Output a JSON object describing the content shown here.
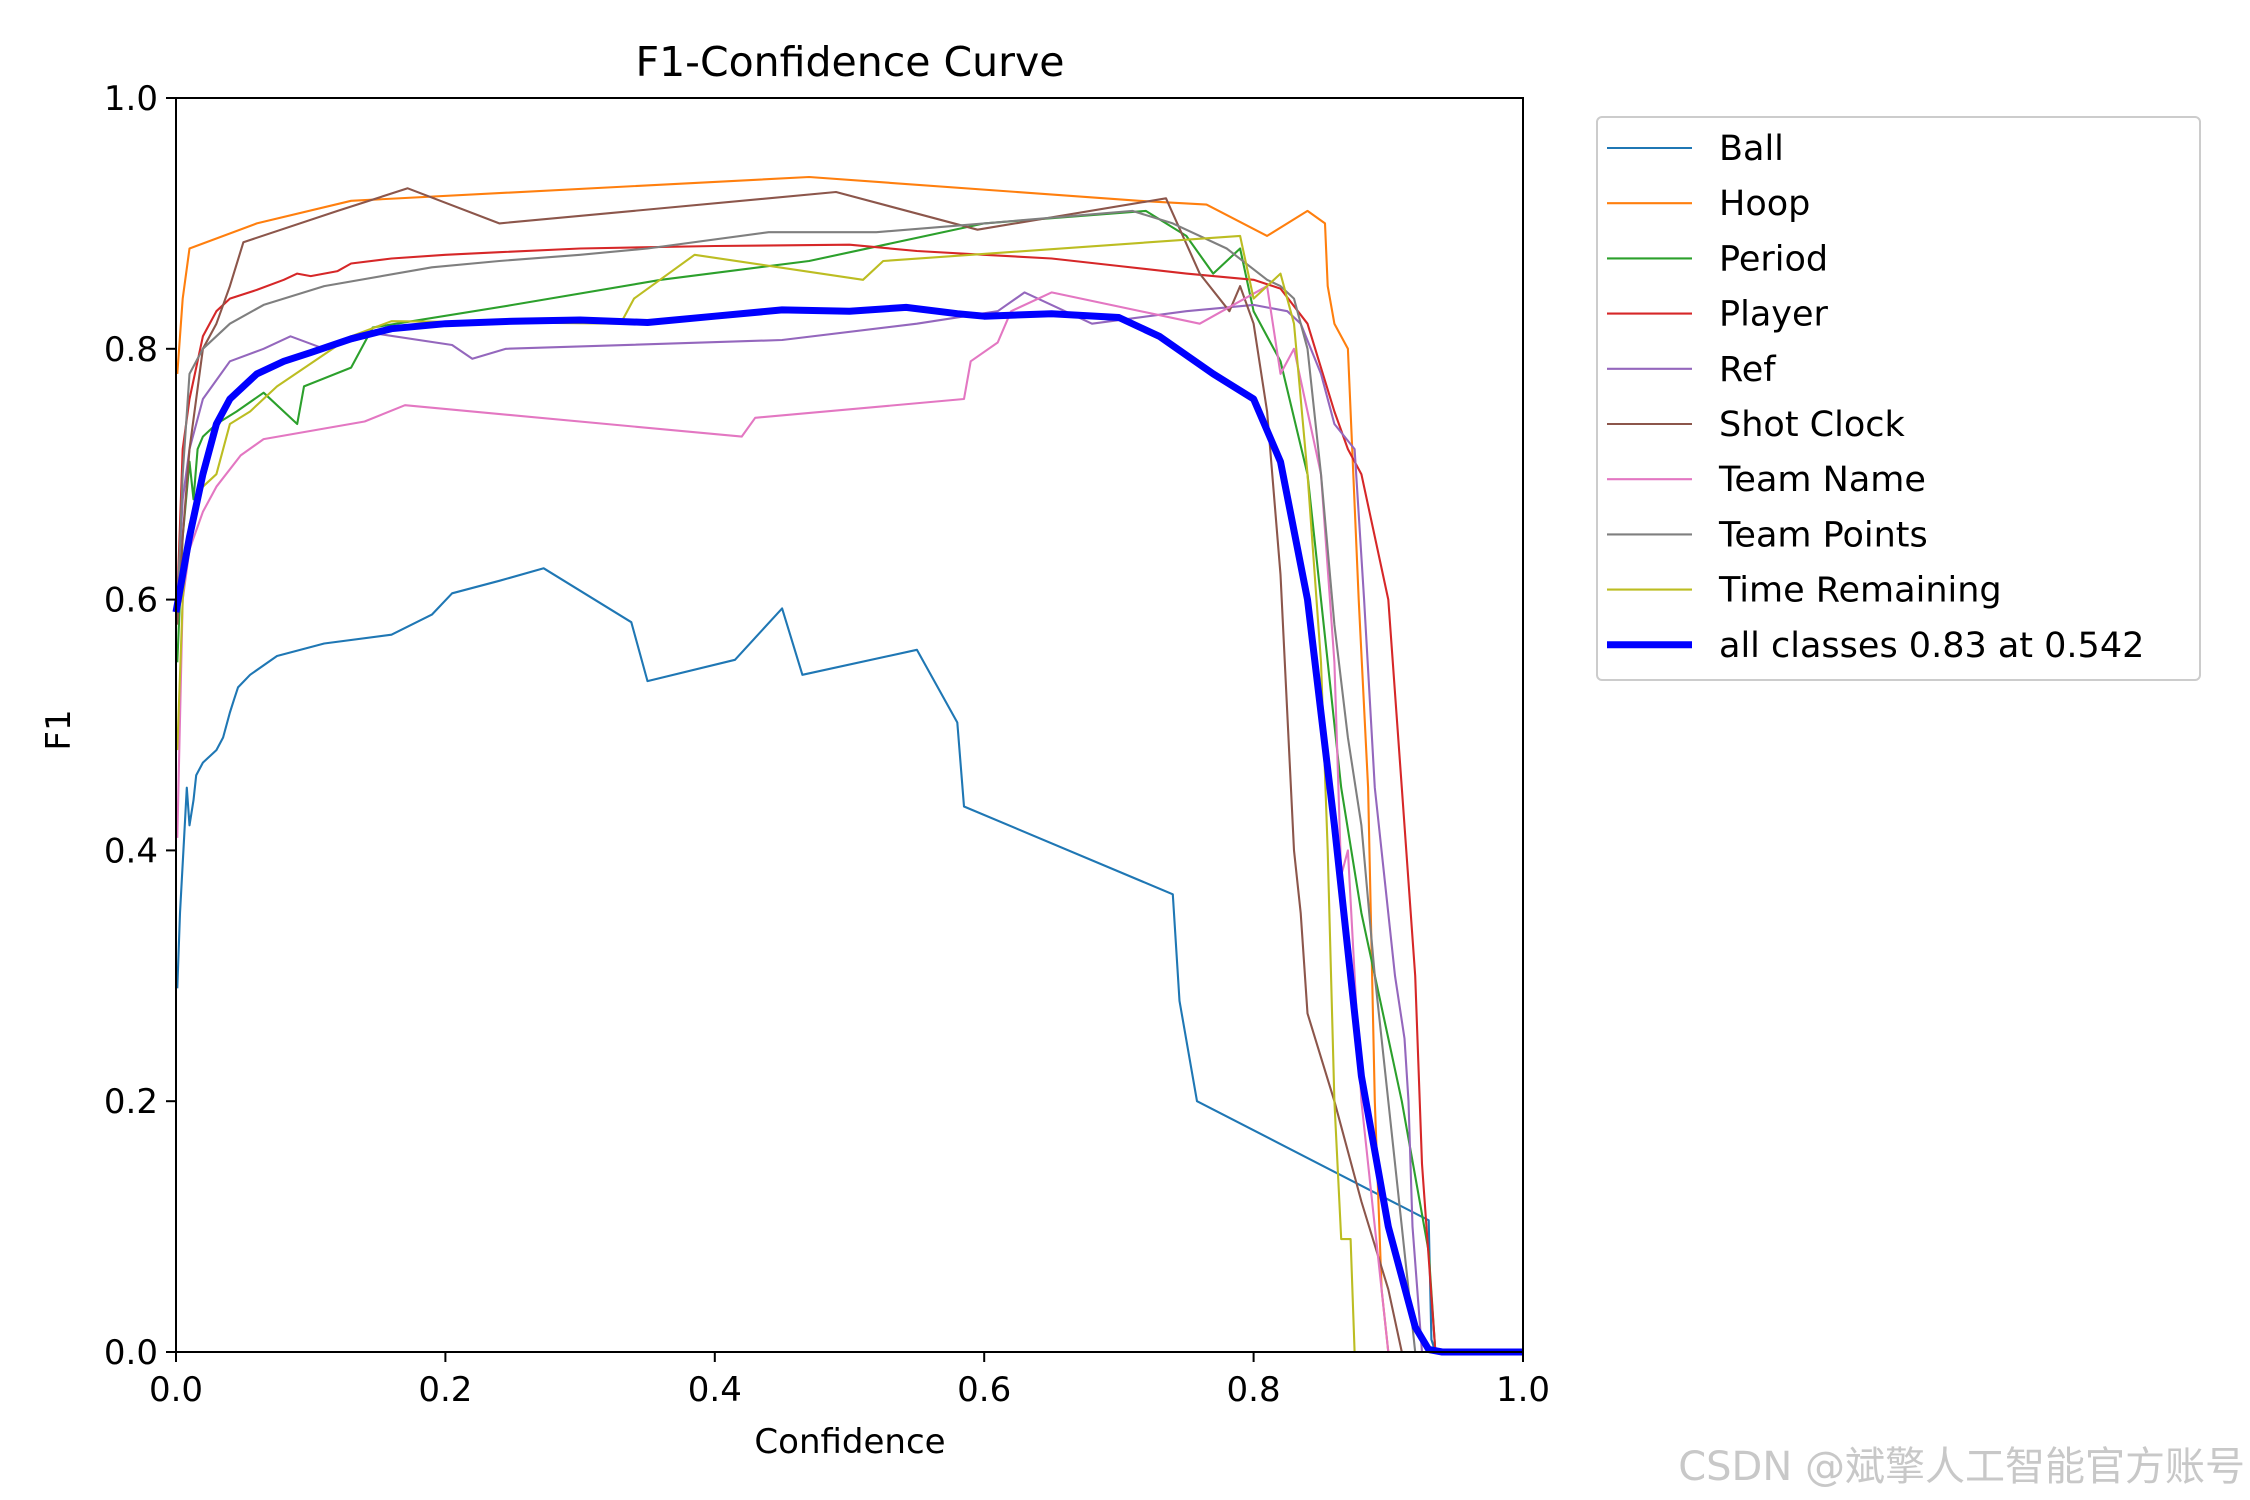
{
  "watermark": "CSDN @斌擎人工智能官方账号",
  "chart_data": {
    "type": "line",
    "title": "F1-Confidence Curve",
    "xlabel": "Confidence",
    "ylabel": "F1",
    "xlim": [
      0,
      1
    ],
    "ylim": [
      0,
      1
    ],
    "xticks": [
      "0.0",
      "0.2",
      "0.4",
      "0.6",
      "0.8",
      "1.0"
    ],
    "yticks": [
      "0.0",
      "0.2",
      "0.4",
      "0.6",
      "0.8",
      "1.0"
    ],
    "grid": false,
    "legend_position": "outside-top-right",
    "series": [
      {
        "name": "Ball",
        "color": "#1f77b4",
        "width": 1.5,
        "x": [
          0.001,
          0.003,
          0.006,
          0.008,
          0.01,
          0.013,
          0.015,
          0.02,
          0.03,
          0.035,
          0.04,
          0.043,
          0.046,
          0.055,
          0.075,
          0.11,
          0.16,
          0.19,
          0.205,
          0.24,
          0.273,
          0.338,
          0.35,
          0.415,
          0.45,
          0.465,
          0.55,
          0.58,
          0.585,
          0.74,
          0.745,
          0.758,
          0.93,
          0.932,
          0.935,
          1.0
        ],
        "y": [
          0.29,
          0.35,
          0.41,
          0.45,
          0.42,
          0.44,
          0.46,
          0.47,
          0.48,
          0.49,
          0.51,
          0.52,
          0.53,
          0.54,
          0.555,
          0.565,
          0.572,
          0.588,
          0.605,
          0.615,
          0.625,
          0.582,
          0.535,
          0.552,
          0.593,
          0.54,
          0.56,
          0.502,
          0.435,
          0.365,
          0.28,
          0.2,
          0.105,
          0.01,
          0.0,
          0.0
        ]
      },
      {
        "name": "Hoop",
        "color": "#ff7f0e",
        "width": 1.5,
        "x": [
          0.001,
          0.005,
          0.01,
          0.06,
          0.13,
          0.47,
          0.715,
          0.765,
          0.81,
          0.84,
          0.853,
          0.855,
          0.86,
          0.87,
          0.878,
          0.885,
          0.89,
          0.895,
          0.9,
          1.0
        ],
        "y": [
          0.78,
          0.84,
          0.88,
          0.9,
          0.918,
          0.937,
          0.918,
          0.915,
          0.89,
          0.91,
          0.9,
          0.85,
          0.82,
          0.8,
          0.6,
          0.45,
          0.2,
          0.05,
          0.0,
          0.0
        ]
      },
      {
        "name": "Period",
        "color": "#2ca02c",
        "width": 1.5,
        "x": [
          0.001,
          0.005,
          0.01,
          0.013,
          0.016,
          0.02,
          0.03,
          0.045,
          0.065,
          0.09,
          0.095,
          0.13,
          0.146,
          0.25,
          0.36,
          0.47,
          0.6,
          0.72,
          0.75,
          0.77,
          0.79,
          0.8,
          0.82,
          0.84,
          0.85,
          0.865,
          0.88,
          0.91,
          0.93,
          0.935,
          1.0
        ],
        "y": [
          0.55,
          0.65,
          0.71,
          0.68,
          0.72,
          0.73,
          0.74,
          0.75,
          0.765,
          0.74,
          0.77,
          0.785,
          0.817,
          0.835,
          0.855,
          0.87,
          0.9,
          0.91,
          0.89,
          0.86,
          0.88,
          0.83,
          0.79,
          0.7,
          0.6,
          0.45,
          0.35,
          0.2,
          0.08,
          0.0,
          0.0
        ]
      },
      {
        "name": "Player",
        "color": "#d62728",
        "width": 1.5,
        "x": [
          0.001,
          0.005,
          0.01,
          0.02,
          0.03,
          0.04,
          0.06,
          0.08,
          0.09,
          0.1,
          0.12,
          0.13,
          0.16,
          0.2,
          0.24,
          0.3,
          0.4,
          0.5,
          0.55,
          0.6,
          0.65,
          0.7,
          0.75,
          0.8,
          0.82,
          0.84,
          0.86,
          0.87,
          0.88,
          0.9,
          0.91,
          0.92,
          0.925,
          0.935,
          1.0
        ],
        "y": [
          0.6,
          0.72,
          0.76,
          0.81,
          0.83,
          0.84,
          0.847,
          0.855,
          0.86,
          0.858,
          0.862,
          0.868,
          0.872,
          0.875,
          0.877,
          0.88,
          0.882,
          0.883,
          0.878,
          0.875,
          0.872,
          0.866,
          0.86,
          0.855,
          0.848,
          0.82,
          0.75,
          0.72,
          0.7,
          0.6,
          0.45,
          0.3,
          0.15,
          0.0,
          0.0
        ]
      },
      {
        "name": "Ref",
        "color": "#9467bd",
        "width": 1.5,
        "x": [
          0.001,
          0.005,
          0.01,
          0.02,
          0.04,
          0.065,
          0.085,
          0.11,
          0.15,
          0.205,
          0.22,
          0.245,
          0.45,
          0.55,
          0.61,
          0.63,
          0.66,
          0.68,
          0.75,
          0.8,
          0.825,
          0.835,
          0.85,
          0.86,
          0.875,
          0.882,
          0.89,
          0.905,
          0.912,
          0.915,
          0.918,
          0.925,
          1.0
        ],
        "y": [
          0.6,
          0.68,
          0.72,
          0.76,
          0.79,
          0.8,
          0.81,
          0.8,
          0.812,
          0.803,
          0.792,
          0.8,
          0.807,
          0.82,
          0.83,
          0.845,
          0.83,
          0.82,
          0.83,
          0.835,
          0.83,
          0.82,
          0.78,
          0.74,
          0.72,
          0.6,
          0.45,
          0.3,
          0.25,
          0.2,
          0.1,
          0.0,
          0.0
        ]
      },
      {
        "name": "Shot Clock",
        "color": "#8c564b",
        "width": 1.5,
        "x": [
          0.001,
          0.005,
          0.01,
          0.02,
          0.03,
          0.04,
          0.05,
          0.12,
          0.172,
          0.24,
          0.49,
          0.595,
          0.735,
          0.76,
          0.782,
          0.79,
          0.8,
          0.81,
          0.82,
          0.83,
          0.835,
          0.84,
          0.86,
          0.88,
          0.9,
          0.91,
          0.92,
          1.0
        ],
        "y": [
          0.58,
          0.65,
          0.72,
          0.8,
          0.82,
          0.85,
          0.885,
          0.91,
          0.928,
          0.9,
          0.925,
          0.895,
          0.92,
          0.86,
          0.83,
          0.85,
          0.82,
          0.75,
          0.62,
          0.4,
          0.35,
          0.27,
          0.2,
          0.12,
          0.05,
          0.0,
          0.0,
          0.0
        ]
      },
      {
        "name": "Team Name",
        "color": "#e377c2",
        "width": 1.5,
        "x": [
          0.001,
          0.005,
          0.01,
          0.02,
          0.03,
          0.048,
          0.065,
          0.14,
          0.17,
          0.42,
          0.43,
          0.585,
          0.59,
          0.61,
          0.62,
          0.65,
          0.76,
          0.81,
          0.82,
          0.83,
          0.84,
          0.85,
          0.86,
          0.865,
          0.87,
          0.88,
          0.89,
          0.9,
          1.0
        ],
        "y": [
          0.41,
          0.6,
          0.64,
          0.67,
          0.69,
          0.715,
          0.728,
          0.742,
          0.755,
          0.73,
          0.745,
          0.76,
          0.79,
          0.805,
          0.83,
          0.845,
          0.82,
          0.85,
          0.78,
          0.8,
          0.75,
          0.7,
          0.55,
          0.38,
          0.4,
          0.2,
          0.1,
          0.0,
          0.0
        ]
      },
      {
        "name": "Team Points",
        "color": "#7f7f7f",
        "width": 1.5,
        "x": [
          0.001,
          0.005,
          0.01,
          0.02,
          0.04,
          0.065,
          0.11,
          0.19,
          0.24,
          0.3,
          0.35,
          0.44,
          0.52,
          0.6,
          0.71,
          0.74,
          0.78,
          0.81,
          0.82,
          0.83,
          0.84,
          0.85,
          0.86,
          0.87,
          0.88,
          0.89,
          0.9,
          0.91,
          0.92,
          1.0
        ],
        "y": [
          0.59,
          0.7,
          0.78,
          0.8,
          0.82,
          0.835,
          0.85,
          0.865,
          0.87,
          0.875,
          0.88,
          0.893,
          0.893,
          0.9,
          0.91,
          0.9,
          0.88,
          0.855,
          0.85,
          0.84,
          0.8,
          0.7,
          0.58,
          0.49,
          0.42,
          0.3,
          0.2,
          0.1,
          0.0,
          0.0
        ]
      },
      {
        "name": "Time Remaining",
        "color": "#bcbd22",
        "width": 1.5,
        "x": [
          0.001,
          0.005,
          0.01,
          0.02,
          0.03,
          0.04,
          0.055,
          0.075,
          0.13,
          0.16,
          0.33,
          0.34,
          0.385,
          0.51,
          0.525,
          0.79,
          0.8,
          0.81,
          0.82,
          0.83,
          0.84,
          0.85,
          0.855,
          0.86,
          0.865,
          0.872,
          0.875,
          1.0
        ],
        "y": [
          0.48,
          0.6,
          0.66,
          0.69,
          0.7,
          0.74,
          0.75,
          0.77,
          0.81,
          0.822,
          0.82,
          0.84,
          0.875,
          0.855,
          0.87,
          0.89,
          0.84,
          0.85,
          0.86,
          0.82,
          0.7,
          0.55,
          0.4,
          0.2,
          0.09,
          0.09,
          0.0,
          0.0
        ]
      },
      {
        "name": "all classes 0.83 at 0.542",
        "color": "#0000ff",
        "width": 5,
        "x": [
          0.0,
          0.005,
          0.01,
          0.02,
          0.03,
          0.04,
          0.06,
          0.08,
          0.1,
          0.13,
          0.16,
          0.2,
          0.25,
          0.3,
          0.35,
          0.4,
          0.45,
          0.5,
          0.542,
          0.58,
          0.6,
          0.65,
          0.7,
          0.73,
          0.75,
          0.77,
          0.8,
          0.82,
          0.84,
          0.86,
          0.88,
          0.9,
          0.92,
          0.93,
          0.94,
          0.95,
          1.0
        ],
        "y": [
          0.59,
          0.62,
          0.65,
          0.7,
          0.74,
          0.76,
          0.78,
          0.79,
          0.797,
          0.808,
          0.816,
          0.82,
          0.822,
          0.823,
          0.821,
          0.826,
          0.831,
          0.83,
          0.833,
          0.828,
          0.826,
          0.828,
          0.825,
          0.81,
          0.795,
          0.78,
          0.76,
          0.71,
          0.6,
          0.42,
          0.22,
          0.1,
          0.02,
          0.002,
          0.0,
          0.0,
          0.0
        ]
      }
    ]
  }
}
